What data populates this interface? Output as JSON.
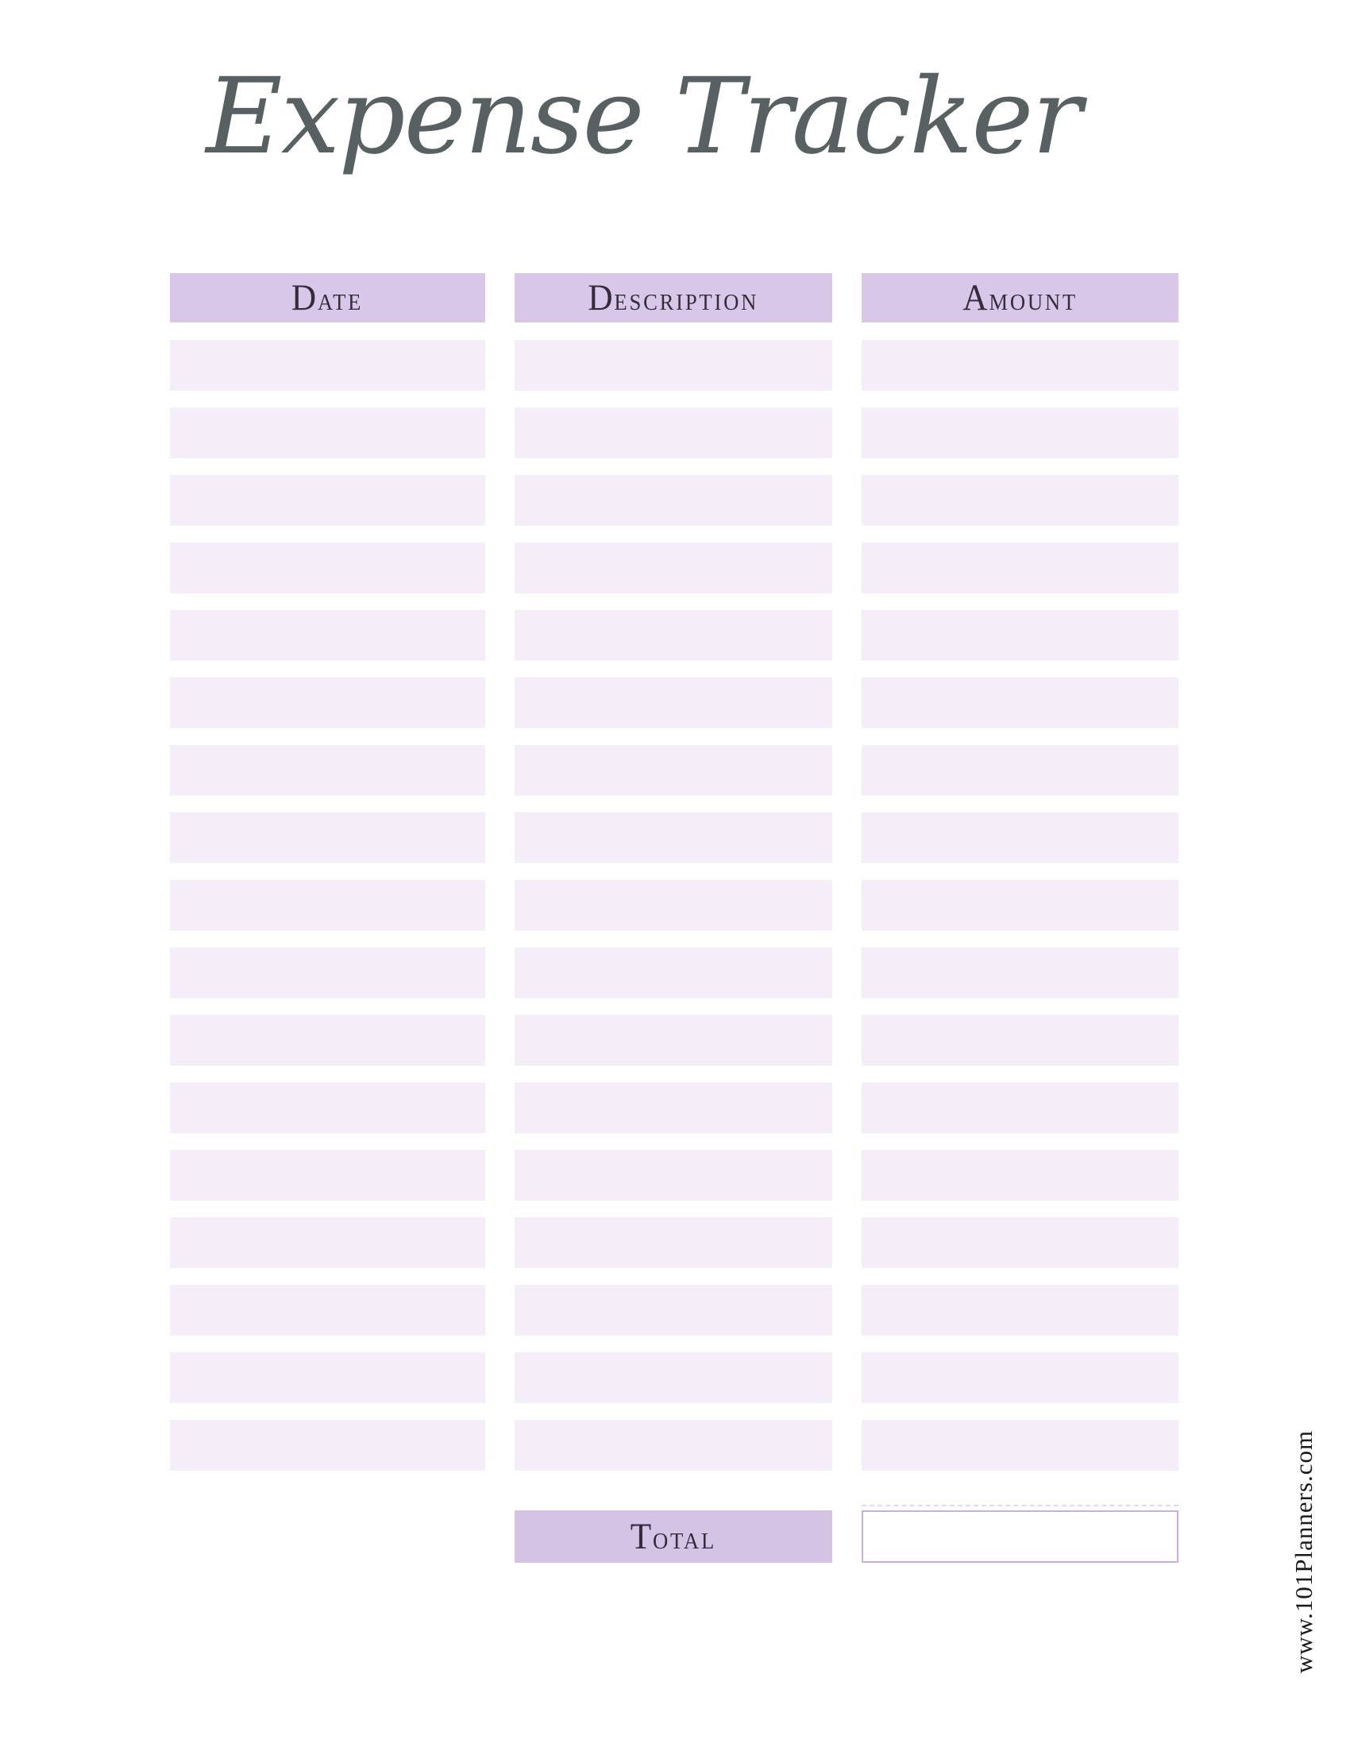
{
  "page": {
    "title": "Expense Tracker",
    "watermark": "www.101Planners.com"
  },
  "table": {
    "columns": [
      {
        "label": "Date"
      },
      {
        "label": "Description"
      },
      {
        "label": "Amount"
      }
    ],
    "rows": [
      {
        "date": "",
        "description": "",
        "amount": ""
      },
      {
        "date": "",
        "description": "",
        "amount": ""
      },
      {
        "date": "",
        "description": "",
        "amount": ""
      },
      {
        "date": "",
        "description": "",
        "amount": ""
      },
      {
        "date": "",
        "description": "",
        "amount": ""
      },
      {
        "date": "",
        "description": "",
        "amount": ""
      },
      {
        "date": "",
        "description": "",
        "amount": ""
      },
      {
        "date": "",
        "description": "",
        "amount": ""
      },
      {
        "date": "",
        "description": "",
        "amount": ""
      },
      {
        "date": "",
        "description": "",
        "amount": ""
      },
      {
        "date": "",
        "description": "",
        "amount": ""
      },
      {
        "date": "",
        "description": "",
        "amount": ""
      },
      {
        "date": "",
        "description": "",
        "amount": ""
      },
      {
        "date": "",
        "description": "",
        "amount": ""
      },
      {
        "date": "",
        "description": "",
        "amount": ""
      },
      {
        "date": "",
        "description": "",
        "amount": ""
      },
      {
        "date": "",
        "description": "",
        "amount": ""
      }
    ]
  },
  "footer": {
    "total_label": "Total",
    "total_value": ""
  },
  "colors": {
    "header_bg": "#d8c7e8",
    "row_bg": "#f4eef9",
    "footer_bg": "#d5c3e6",
    "box_border": "#c6b1dc",
    "title_color": "#596061",
    "header_text": "#352b3c",
    "watermark_color": "#1a1a1a"
  }
}
